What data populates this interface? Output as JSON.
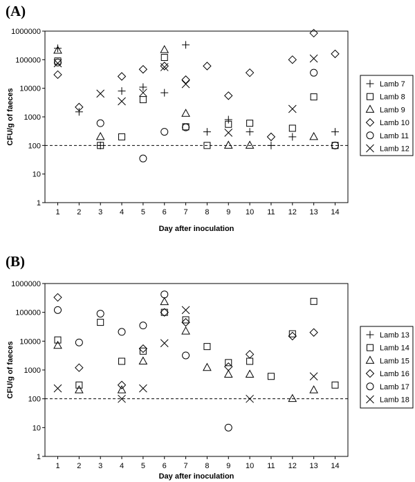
{
  "chart_data": [
    {
      "type": "scatter",
      "panel_label": "(A)",
      "title": "",
      "xlabel": "Day after inoculation",
      "ylabel": "CFU/g of faeces",
      "x_ticks": [
        1,
        2,
        3,
        4,
        5,
        6,
        7,
        8,
        9,
        10,
        11,
        12,
        13,
        14
      ],
      "y_ticks": [
        "1",
        "10",
        "100",
        "1000",
        "10000",
        "100000",
        "1000000"
      ],
      "xlim": [
        0.4,
        14.6
      ],
      "ylim": [
        1,
        1000000
      ],
      "y_scale": "log",
      "threshold": 100,
      "grid": false,
      "legend_position": "right",
      "series": [
        {
          "name": "Lamb 7",
          "marker": "plus",
          "points": [
            [
              1,
              250000
            ],
            [
              2,
              1500
            ],
            [
              3,
              100
            ],
            [
              4,
              8000
            ],
            [
              5,
              11000
            ],
            [
              6,
              7000
            ],
            [
              7,
              330000
            ],
            [
              8,
              300
            ],
            [
              9,
              800
            ],
            [
              10,
              300
            ],
            [
              11,
              100
            ],
            [
              12,
              200
            ],
            [
              14,
              300
            ]
          ]
        },
        {
          "name": "Lamb 8",
          "marker": "square",
          "points": [
            [
              1,
              90000
            ],
            [
              3,
              100
            ],
            [
              4,
              200
            ],
            [
              5,
              4000
            ],
            [
              6,
              120000
            ],
            [
              7,
              450
            ],
            [
              8,
              100
            ],
            [
              9,
              550
            ],
            [
              10,
              600
            ],
            [
              12,
              400
            ],
            [
              13,
              5000
            ],
            [
              14,
              100
            ]
          ]
        },
        {
          "name": "Lamb 9",
          "marker": "triangle",
          "points": [
            [
              1,
              210000
            ],
            [
              3,
              200
            ],
            [
              6,
              220000
            ],
            [
              7,
              1300
            ],
            [
              9,
              100
            ],
            [
              10,
              100
            ],
            [
              13,
              200
            ]
          ]
        },
        {
          "name": "Lamb 10",
          "marker": "diamond",
          "points": [
            [
              1,
              30000
            ],
            [
              2,
              2200
            ],
            [
              4,
              26000
            ],
            [
              5,
              46000
            ],
            [
              6,
              60000
            ],
            [
              7,
              20000
            ],
            [
              8,
              60000
            ],
            [
              9,
              5500
            ],
            [
              10,
              35000
            ],
            [
              11,
              200
            ],
            [
              12,
              100000
            ],
            [
              13,
              850000
            ],
            [
              14,
              160000
            ]
          ]
        },
        {
          "name": "Lamb 11",
          "marker": "circle",
          "points": [
            [
              1,
              80000
            ],
            [
              3,
              600
            ],
            [
              5,
              35
            ],
            [
              6,
              300
            ],
            [
              7,
              430
            ],
            [
              13,
              35000
            ],
            [
              14,
              100
            ]
          ]
        },
        {
          "name": "Lamb 12",
          "marker": "cross",
          "points": [
            [
              1,
              75000
            ],
            [
              3,
              6500
            ],
            [
              4,
              3500
            ],
            [
              5,
              7000
            ],
            [
              6,
              55000
            ],
            [
              7,
              14000
            ],
            [
              9,
              280
            ],
            [
              12,
              1900
            ],
            [
              13,
              110000
            ]
          ]
        }
      ]
    },
    {
      "type": "scatter",
      "panel_label": "(B)",
      "title": "",
      "xlabel": "Day after inoculation",
      "ylabel": "CFU/g of faeces",
      "x_ticks": [
        1,
        2,
        3,
        4,
        5,
        6,
        7,
        8,
        9,
        10,
        11,
        12,
        13,
        14
      ],
      "y_ticks": [
        "1",
        "10",
        "100",
        "1000",
        "10000",
        "100000",
        "1000000"
      ],
      "xlim": [
        0.4,
        14.6
      ],
      "ylim": [
        1,
        1000000
      ],
      "y_scale": "log",
      "threshold": 100,
      "grid": false,
      "legend_position": "right",
      "series": [
        {
          "name": "Lamb 13",
          "marker": "plus",
          "points": []
        },
        {
          "name": "Lamb 14",
          "marker": "square",
          "points": [
            [
              1,
              11000
            ],
            [
              2,
              300
            ],
            [
              3,
              45000
            ],
            [
              4,
              2000
            ],
            [
              5,
              4500
            ],
            [
              6,
              100000
            ],
            [
              7,
              55000
            ],
            [
              8,
              6500
            ],
            [
              9,
              1800
            ],
            [
              10,
              2000
            ],
            [
              11,
              600
            ],
            [
              12,
              18000
            ],
            [
              13,
              240000
            ],
            [
              14,
              300
            ]
          ]
        },
        {
          "name": "Lamb 15",
          "marker": "triangle",
          "points": [
            [
              1,
              7000
            ],
            [
              2,
              200
            ],
            [
              4,
              200
            ],
            [
              5,
              2000
            ],
            [
              6,
              230000
            ],
            [
              7,
              22000
            ],
            [
              8,
              1200
            ],
            [
              9,
              700
            ],
            [
              10,
              700
            ],
            [
              12,
              100
            ],
            [
              13,
              200
            ]
          ]
        },
        {
          "name": "Lamb 16",
          "marker": "diamond",
          "points": [
            [
              1,
              330000
            ],
            [
              2,
              1200
            ],
            [
              4,
              300
            ],
            [
              5,
              5500
            ],
            [
              6,
              100000
            ],
            [
              7,
              45000
            ],
            [
              9,
              1300
            ],
            [
              10,
              3500
            ],
            [
              12,
              15000
            ],
            [
              13,
              20000
            ]
          ]
        },
        {
          "name": "Lamb 17",
          "marker": "circle",
          "points": [
            [
              1,
              120000
            ],
            [
              2,
              9000
            ],
            [
              3,
              90000
            ],
            [
              4,
              21000
            ],
            [
              5,
              35000
            ],
            [
              6,
              420000
            ],
            [
              7,
              3200
            ],
            [
              9,
              10
            ]
          ]
        },
        {
          "name": "Lamb 18",
          "marker": "cross",
          "points": [
            [
              1,
              230
            ],
            [
              4,
              100
            ],
            [
              5,
              230
            ],
            [
              6,
              8500
            ],
            [
              7,
              120000
            ],
            [
              10,
              100
            ],
            [
              13,
              600
            ]
          ]
        }
      ]
    }
  ]
}
